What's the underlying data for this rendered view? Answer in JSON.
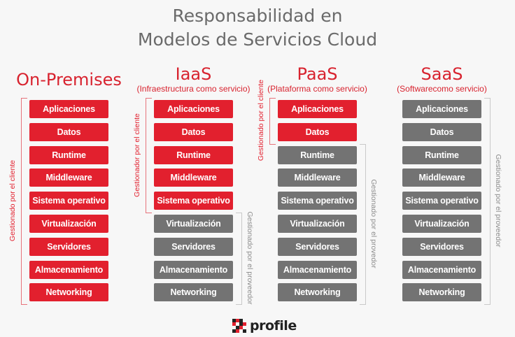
{
  "title": {
    "line1": "Responsabilidad en",
    "line2": "Modelos de Servicios Cloud"
  },
  "columns": [
    {
      "name": "On-Premises",
      "subtitle": "",
      "client_label": "Gestionado por el cliente",
      "provider_label": "",
      "managed_by_client": 9
    },
    {
      "name": "IaaS",
      "subtitle": "(Infraestructura como servicio)",
      "client_label": "Gestionador por el cliente",
      "provider_label": "Gestionado por el proveedor",
      "managed_by_client": 5
    },
    {
      "name": "PaaS",
      "subtitle": "(Plataforma como servicio)",
      "client_label": "Gestionado por el cliente",
      "provider_label": "Gestionado por el provedor",
      "managed_by_client": 2
    },
    {
      "name": "SaaS",
      "subtitle": "(Softwarecomo servicio)",
      "client_label": "",
      "provider_label": "Gestionado por el proveedor",
      "managed_by_client": 0
    }
  ],
  "layers": [
    "Aplicaciones",
    "Datos",
    "Runtime",
    "Middleware",
    "Sistema operativo",
    "Virtualización",
    "Servidores",
    "Almacenamiento",
    "Networking"
  ],
  "colors": {
    "client": "#e2202e",
    "provider": "#737373",
    "accent": "#d8232f"
  },
  "logo": {
    "text": "profile",
    "icon": "profile-logo-icon"
  }
}
